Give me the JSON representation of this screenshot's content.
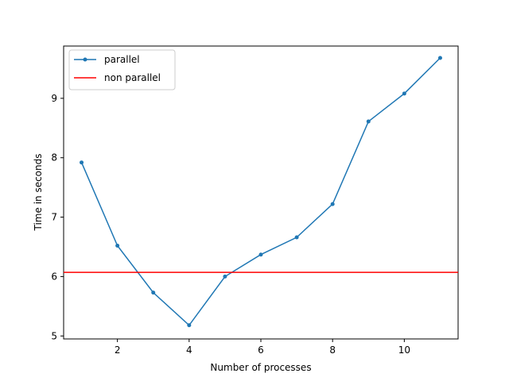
{
  "chart_data": {
    "type": "line",
    "xlabel": "Number of processes",
    "ylabel": "Time in seconds",
    "xlim": [
      0.5,
      11.5
    ],
    "ylim": [
      4.95,
      9.88
    ],
    "xticks": [
      2,
      4,
      6,
      8,
      10
    ],
    "yticks": [
      5,
      6,
      7,
      8,
      9
    ],
    "grid": false,
    "legend_placement": "upper-left",
    "series": [
      {
        "name": "parallel",
        "type": "line",
        "marker": "dot",
        "color": "#1f77b4",
        "x": [
          1,
          2,
          3,
          4,
          5,
          6,
          7,
          8,
          9,
          10,
          11
        ],
        "y": [
          7.92,
          6.52,
          5.73,
          5.18,
          6.0,
          6.37,
          6.66,
          7.22,
          8.61,
          9.08,
          9.68
        ]
      },
      {
        "name": "non parallel",
        "type": "hline",
        "color": "#ff0000",
        "value": 6.07
      }
    ]
  }
}
